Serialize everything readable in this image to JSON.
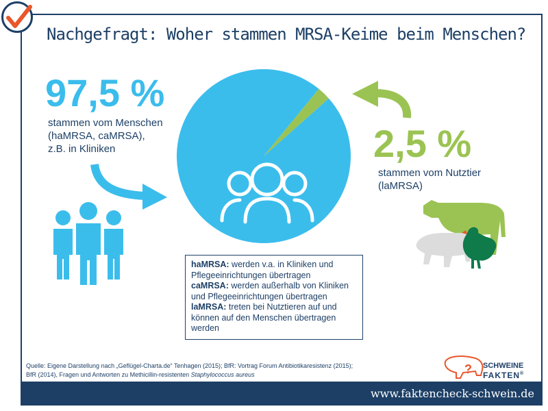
{
  "header": {
    "title": "Nachgefragt: Woher stammen MRSA-Keime beim Menschen?",
    "check_icon": "checkmark-icon"
  },
  "colors": {
    "navy": "#1d3f66",
    "blue": "#3bbdec",
    "green": "#9bc353",
    "orange": "#e8562a",
    "grey_pig": "#dcdcdc",
    "dark_green": "#0f7a4a"
  },
  "left_panel": {
    "value": "97,5 %",
    "lines": [
      "stammen vom Menschen",
      "(haMRSA, caMRSA),",
      "z.B. in Kliniken"
    ]
  },
  "right_panel": {
    "value": "2,5 %",
    "lines": [
      "stammen vom Nutztier",
      "(laMRSA)"
    ]
  },
  "legend": {
    "items": [
      {
        "term": "haMRSA:",
        "text": " werden v.a. in Kliniken und Pflegeeinrichtungen übertragen"
      },
      {
        "term": "caMRSA:",
        "text": " werden außerhalb von Kliniken und Pflegeeinrichtungen übertragen"
      },
      {
        "term": "laMRSA:",
        "text": " treten bei Nutztieren auf und können auf den Menschen übertragen werden"
      }
    ]
  },
  "source": {
    "line1": "Quelle: Eigene Darstellung nach „Geflügel-Charta.de“ Tenhagen (2015); BfR: Vortrag Forum Antibiotikaresistenz (2015);",
    "line2_prefix": "BfR (2014), Fragen und Antworten zu Methicillin-resistenten ",
    "line2_italic": "Staphylococcus aureus"
  },
  "brand": {
    "line1": "SCHWEINE",
    "line2": "FAKTEN",
    "reg": "®"
  },
  "footer": {
    "url": "www.faktencheck-schwein.de"
  },
  "chart_data": {
    "type": "pie",
    "title": "Nachgefragt: Woher stammen MRSA-Keime beim Menschen?",
    "categories": [
      "Mensch",
      "Nutztier"
    ],
    "values": [
      97.5,
      2.5
    ],
    "labels": [
      "97,5 %",
      "2,5 %"
    ],
    "colors": [
      "#3bbdec",
      "#9bc353"
    ]
  }
}
